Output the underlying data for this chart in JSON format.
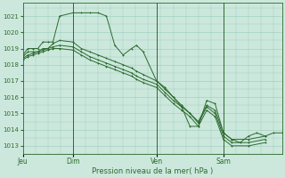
{
  "bg_color": "#cce8dd",
  "grid_color": "#99ccbb",
  "line_color": "#2d6a2d",
  "xlabel": "Pression niveau de la mer( hPa )",
  "ylim": [
    1012.5,
    1021.8
  ],
  "yticks": [
    1013,
    1014,
    1015,
    1016,
    1017,
    1018,
    1019,
    1020,
    1021
  ],
  "xtick_labels": [
    "Jeu",
    "Dim",
    "Ven",
    "Sam"
  ],
  "xtick_positions": [
    0,
    3,
    8,
    12
  ],
  "xvline_positions": [
    3,
    8,
    12
  ],
  "xlim": [
    0,
    15.5
  ],
  "series1": {
    "x": [
      0,
      0.3,
      0.6,
      0.9,
      1.2,
      1.5,
      1.8,
      2.2,
      3.0,
      3.5,
      4.0,
      4.5,
      5.0,
      5.5,
      6.0,
      6.5,
      6.8,
      7.2,
      8.0,
      8.5,
      9.0,
      9.5,
      10.0,
      10.5,
      11.0,
      11.5,
      12.0,
      12.5,
      13.0,
      13.5,
      14.0,
      14.5,
      15.0,
      15.5
    ],
    "y": [
      1018.6,
      1019.0,
      1019.0,
      1019.0,
      1019.4,
      1019.4,
      1019.4,
      1021.0,
      1021.2,
      1021.2,
      1021.2,
      1021.2,
      1021.0,
      1019.2,
      1018.6,
      1019.0,
      1019.2,
      1018.8,
      1017.0,
      1016.6,
      1016.0,
      1015.4,
      1014.2,
      1014.2,
      1015.8,
      1015.6,
      1013.8,
      1013.4,
      1013.2,
      1013.6,
      1013.8,
      1013.6,
      1013.8,
      1013.8
    ]
  },
  "series2": {
    "x": [
      0,
      0.3,
      0.6,
      0.9,
      1.2,
      1.5,
      1.8,
      2.2,
      3.0,
      3.5,
      4.0,
      4.5,
      5.0,
      5.5,
      6.0,
      6.5,
      6.8,
      7.2,
      8.0,
      8.5,
      9.0,
      9.5,
      10.0,
      10.5,
      11.0,
      11.5,
      12.0,
      12.5,
      13.5,
      14.5
    ],
    "y": [
      1018.5,
      1018.8,
      1018.8,
      1018.8,
      1019.0,
      1019.0,
      1019.3,
      1019.5,
      1019.4,
      1019.0,
      1018.8,
      1018.6,
      1018.4,
      1018.2,
      1018.0,
      1017.8,
      1017.6,
      1017.4,
      1017.0,
      1016.5,
      1016.0,
      1015.5,
      1015.0,
      1014.5,
      1015.5,
      1015.2,
      1013.8,
      1013.4,
      1013.4,
      1013.6
    ]
  },
  "series3": {
    "x": [
      0,
      0.3,
      0.6,
      0.9,
      1.2,
      1.5,
      1.8,
      2.2,
      3.0,
      3.5,
      4.0,
      4.5,
      5.0,
      5.5,
      6.0,
      6.5,
      6.8,
      7.2,
      8.0,
      8.5,
      9.0,
      9.5,
      10.0,
      10.5,
      11.0,
      11.5,
      12.0,
      12.5,
      13.5,
      14.5
    ],
    "y": [
      1018.4,
      1018.6,
      1018.7,
      1018.8,
      1018.9,
      1019.0,
      1019.1,
      1019.2,
      1019.1,
      1018.8,
      1018.5,
      1018.3,
      1018.1,
      1017.9,
      1017.7,
      1017.5,
      1017.3,
      1017.1,
      1016.8,
      1016.3,
      1015.8,
      1015.4,
      1015.0,
      1014.4,
      1015.4,
      1015.0,
      1013.6,
      1013.2,
      1013.2,
      1013.4
    ]
  },
  "series4": {
    "x": [
      0,
      0.3,
      0.6,
      0.9,
      1.2,
      1.5,
      1.8,
      2.2,
      3.0,
      3.5,
      4.0,
      4.5,
      5.0,
      5.5,
      6.0,
      6.5,
      6.8,
      7.2,
      8.0,
      8.5,
      9.0,
      9.5,
      10.0,
      10.5,
      11.0,
      11.5,
      12.0,
      12.5,
      13.5,
      14.5
    ],
    "y": [
      1018.3,
      1018.5,
      1018.6,
      1018.7,
      1018.8,
      1018.9,
      1019.0,
      1019.0,
      1018.9,
      1018.6,
      1018.3,
      1018.1,
      1017.9,
      1017.7,
      1017.5,
      1017.3,
      1017.1,
      1016.9,
      1016.6,
      1016.1,
      1015.6,
      1015.2,
      1014.8,
      1014.2,
      1015.2,
      1014.8,
      1013.4,
      1013.0,
      1013.0,
      1013.2
    ]
  }
}
